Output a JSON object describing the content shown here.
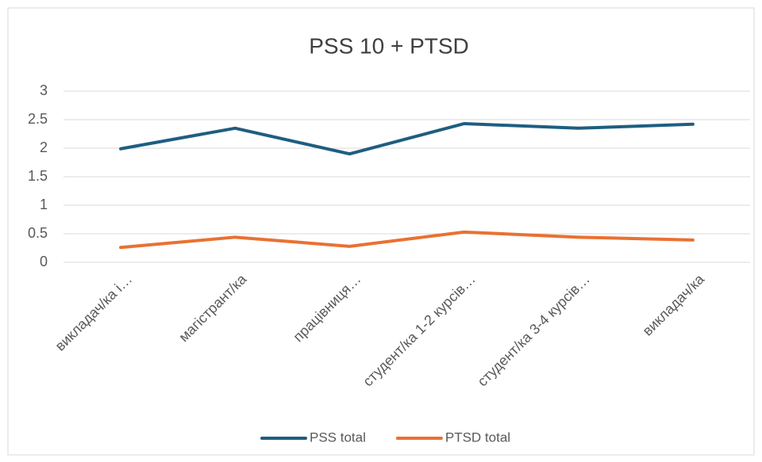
{
  "chart_data": {
    "type": "line",
    "title": "PSS 10 + PTSD",
    "categories": [
      "викладач/ка і…",
      "магістрант/ка",
      "працівниця…",
      "студент/ка 1-2 курсів…",
      "студент/ка 3-4 курсів…",
      "викладач/ка"
    ],
    "series": [
      {
        "name": "PSS total",
        "color": "#1f5e80",
        "values": [
          1.99,
          2.35,
          1.9,
          2.43,
          2.35,
          2.42
        ]
      },
      {
        "name": "PTSD total",
        "color": "#e97132",
        "values": [
          0.26,
          0.44,
          0.28,
          0.53,
          0.44,
          0.39
        ]
      }
    ],
    "ylim": [
      0,
      3
    ],
    "yticks": [
      0,
      0.5,
      1,
      1.5,
      2,
      2.5,
      3
    ],
    "grid": true,
    "legend": "bottom"
  }
}
